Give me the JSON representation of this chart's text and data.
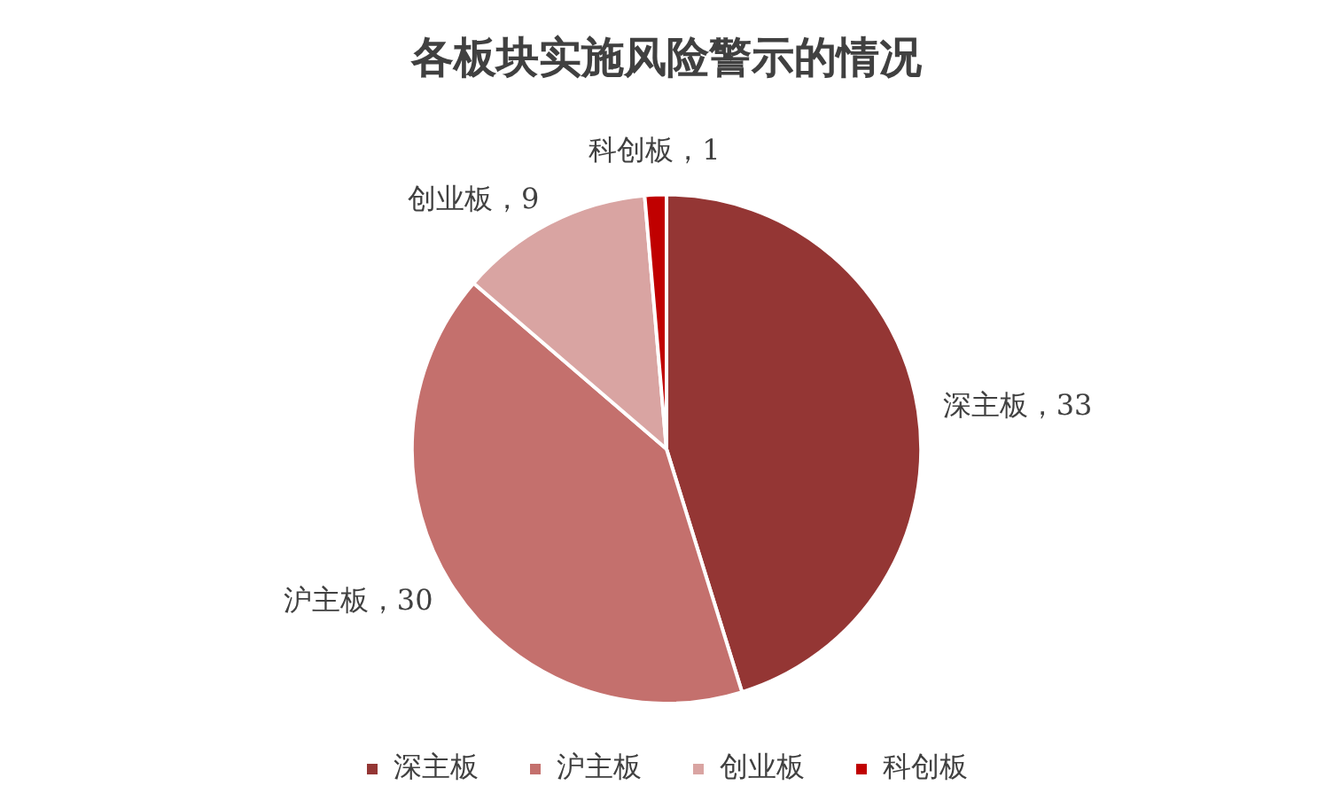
{
  "chart_data": {
    "type": "pie",
    "title": "各板块实施风险警示的情况",
    "categories": [
      "深主板",
      "沪主板",
      "创业板",
      "科创板"
    ],
    "values": [
      33,
      30,
      9,
      1
    ],
    "colors": [
      "#943634",
      "#c4706d",
      "#d9a4a2",
      "#c00000"
    ],
    "value_labels": [
      "深主板，33",
      "沪主板，30",
      "创业板，9",
      "科创板，1"
    ],
    "legend": "bottom"
  }
}
